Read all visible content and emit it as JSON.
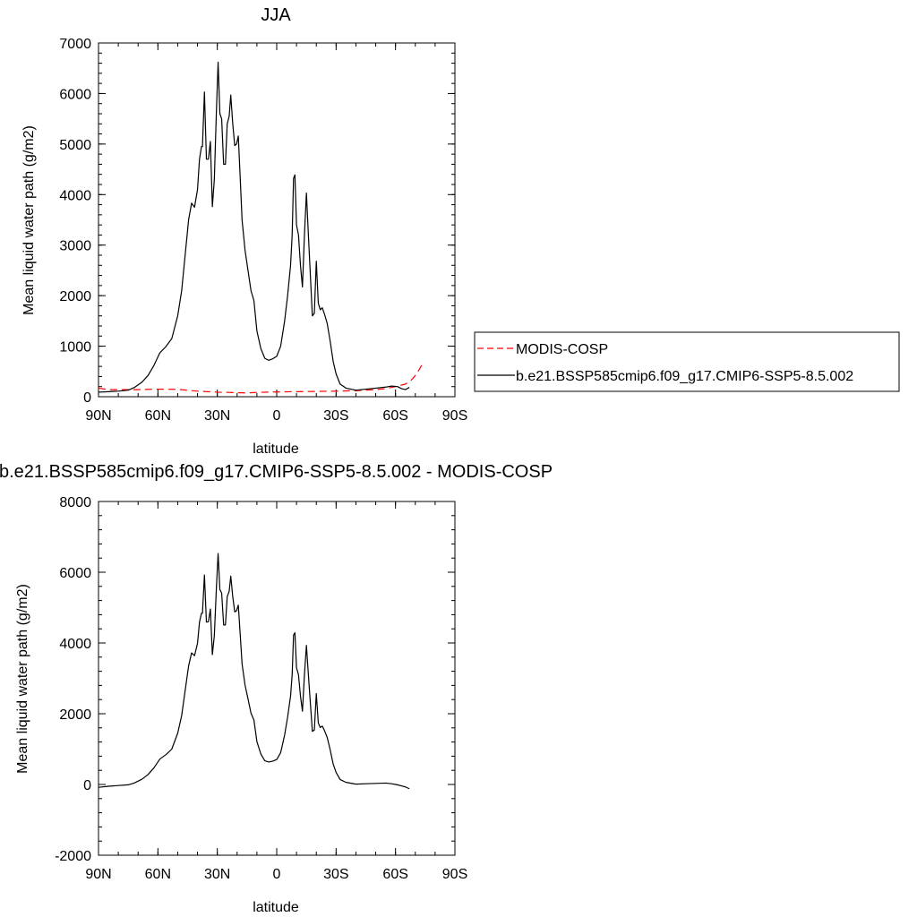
{
  "chart_data": [
    {
      "type": "line",
      "title": "JJA",
      "xlabel": "latitude",
      "ylabel": "Mean liquid water path (g/m2)",
      "xlim": [
        90,
        -90
      ],
      "ylim": [
        0,
        7000
      ],
      "x_ticks": [
        90,
        60,
        30,
        0,
        -30,
        -60,
        -90
      ],
      "x_tick_labels": [
        "90N",
        "60N",
        "30N",
        "0",
        "30S",
        "60S",
        "90S"
      ],
      "y_ticks": [
        0,
        1000,
        2000,
        3000,
        4000,
        5000,
        6000,
        7000
      ],
      "y_tick_labels": [
        "0",
        "1000",
        "2000",
        "3000",
        "4000",
        "5000",
        "6000",
        "7000"
      ],
      "grid": false,
      "legend_position": "right",
      "series": [
        {
          "name": "MODIS-COSP",
          "color": "#ff0000",
          "dash": "dashed",
          "points": [
            [
              90,
              170
            ],
            [
              85,
              140
            ],
            [
              80,
              140
            ],
            [
              70,
              140
            ],
            [
              60,
              150
            ],
            [
              50,
              145
            ],
            [
              40,
              110
            ],
            [
              30,
              90
            ],
            [
              20,
              80
            ],
            [
              15,
              75
            ],
            [
              10,
              85
            ],
            [
              0,
              95
            ],
            [
              -10,
              100
            ],
            [
              -20,
              105
            ],
            [
              -30,
              110
            ],
            [
              -40,
              120
            ],
            [
              -50,
              140
            ],
            [
              -55,
              160
            ],
            [
              -60,
              200
            ],
            [
              -65,
              250
            ],
            [
              -68,
              330
            ],
            [
              -70,
              420
            ],
            [
              -72,
              540
            ],
            [
              -74,
              680
            ]
          ]
        },
        {
          "name": "b.e21.BSSP585cmip6.f09_g17.CMIP6-SSP5-8.5.002",
          "color": "#000000",
          "dash": "solid",
          "points": [
            [
              90,
              90
            ],
            [
              85,
              100
            ],
            [
              80,
              110
            ],
            [
              75,
              130
            ],
            [
              72,
              180
            ],
            [
              68,
              290
            ],
            [
              65,
              420
            ],
            [
              62,
              620
            ],
            [
              59,
              870
            ],
            [
              56,
              990
            ],
            [
              53,
              1150
            ],
            [
              50,
              1600
            ],
            [
              48,
              2100
            ],
            [
              46,
              2900
            ],
            [
              44.5,
              3500
            ],
            [
              43,
              3830
            ],
            [
              41.5,
              3750
            ],
            [
              40,
              4100
            ],
            [
              39,
              4700
            ],
            [
              38,
              4950
            ],
            [
              37.5,
              4950
            ],
            [
              36.5,
              6030
            ],
            [
              35.5,
              4700
            ],
            [
              34.5,
              4700
            ],
            [
              33.5,
              5050
            ],
            [
              32.5,
              3760
            ],
            [
              31.5,
              4300
            ],
            [
              30.5,
              5600
            ],
            [
              29.6,
              6620
            ],
            [
              28.7,
              5600
            ],
            [
              27.8,
              5500
            ],
            [
              26.8,
              4600
            ],
            [
              25.9,
              4600
            ],
            [
              25,
              5400
            ],
            [
              24,
              5550
            ],
            [
              23.2,
              5970
            ],
            [
              22.2,
              5400
            ],
            [
              21.2,
              4970
            ],
            [
              20.3,
              5000
            ],
            [
              19.4,
              5160
            ],
            [
              18.4,
              4300
            ],
            [
              17.5,
              3500
            ],
            [
              16,
              2900
            ],
            [
              14.5,
              2500
            ],
            [
              13,
              2100
            ],
            [
              11.5,
              1900
            ],
            [
              10,
              1300
            ],
            [
              8,
              950
            ],
            [
              6,
              760
            ],
            [
              4,
              720
            ],
            [
              2,
              750
            ],
            [
              0,
              800
            ],
            [
              -2,
              1000
            ],
            [
              -4,
              1500
            ],
            [
              -5.5,
              2000
            ],
            [
              -7,
              2600
            ],
            [
              -7.8,
              3200
            ],
            [
              -8.5,
              4320
            ],
            [
              -9.2,
              4390
            ],
            [
              -10,
              3400
            ],
            [
              -11,
              3200
            ],
            [
              -12,
              2600
            ],
            [
              -13,
              2170
            ],
            [
              -14,
              3200
            ],
            [
              -15,
              4030
            ],
            [
              -16,
              3200
            ],
            [
              -17,
              2400
            ],
            [
              -18,
              1600
            ],
            [
              -19,
              1650
            ],
            [
              -20,
              2680
            ],
            [
              -21,
              1850
            ],
            [
              -22,
              1720
            ],
            [
              -23,
              1760
            ],
            [
              -24,
              1650
            ],
            [
              -25.5,
              1450
            ],
            [
              -27,
              1100
            ],
            [
              -28.5,
              700
            ],
            [
              -30,
              450
            ],
            [
              -32,
              250
            ],
            [
              -35,
              170
            ],
            [
              -40,
              130
            ],
            [
              -45,
              150
            ],
            [
              -50,
              170
            ],
            [
              -55,
              190
            ],
            [
              -58,
              210
            ],
            [
              -61,
              200
            ],
            [
              -63,
              160
            ],
            [
              -65,
              140
            ],
            [
              -67,
              185
            ]
          ]
        }
      ]
    },
    {
      "type": "line",
      "title": "b.e21.BSSP585cmip6.f09_g17.CMIP6-SSP5-8.5.002 - MODIS-COSP",
      "xlabel": "latitude",
      "ylabel": "Mean liquid water path (g/m2)",
      "xlim": [
        90,
        -90
      ],
      "ylim": [
        -2000,
        8000
      ],
      "x_ticks": [
        90,
        60,
        30,
        0,
        -30,
        -60,
        -90
      ],
      "x_tick_labels": [
        "90N",
        "60N",
        "30N",
        "0",
        "30S",
        "60S",
        "90S"
      ],
      "y_ticks": [
        -2000,
        0,
        2000,
        4000,
        6000,
        8000
      ],
      "y_tick_labels": [
        "-2000",
        "0",
        "2000",
        "4000",
        "6000",
        "8000"
      ],
      "grid": false,
      "series": [
        {
          "color": "#000000",
          "dash": "solid",
          "points": [
            [
              90,
              -80
            ],
            [
              85,
              -50
            ],
            [
              80,
              -30
            ],
            [
              75,
              -10
            ],
            [
              72,
              40
            ],
            [
              68,
              150
            ],
            [
              65,
              280
            ],
            [
              62,
              470
            ],
            [
              59,
              720
            ],
            [
              56,
              840
            ],
            [
              53,
              1000
            ],
            [
              50,
              1450
            ],
            [
              48,
              1950
            ],
            [
              46,
              2750
            ],
            [
              44.5,
              3350
            ],
            [
              43,
              3720
            ],
            [
              41.5,
              3640
            ],
            [
              40,
              3990
            ],
            [
              39,
              4590
            ],
            [
              38,
              4840
            ],
            [
              37.5,
              4840
            ],
            [
              36.5,
              5920
            ],
            [
              35.5,
              4590
            ],
            [
              34.5,
              4600
            ],
            [
              33.5,
              4960
            ],
            [
              32.5,
              3670
            ],
            [
              31.5,
              4210
            ],
            [
              30.5,
              5510
            ],
            [
              29.6,
              6530
            ],
            [
              28.7,
              5510
            ],
            [
              27.8,
              5410
            ],
            [
              26.8,
              4510
            ],
            [
              25.9,
              4510
            ],
            [
              25,
              5310
            ],
            [
              24,
              5460
            ],
            [
              23.2,
              5890
            ],
            [
              22.2,
              5310
            ],
            [
              21.2,
              4880
            ],
            [
              20.3,
              4910
            ],
            [
              19.4,
              5070
            ],
            [
              18.4,
              4210
            ],
            [
              17.5,
              3410
            ],
            [
              16,
              2810
            ],
            [
              14.5,
              2420
            ],
            [
              13,
              2020
            ],
            [
              11.5,
              1820
            ],
            [
              10,
              1210
            ],
            [
              8,
              860
            ],
            [
              6,
              670
            ],
            [
              4,
              635
            ],
            [
              2,
              660
            ],
            [
              0,
              705
            ],
            [
              -2,
              900
            ],
            [
              -4,
              1400
            ],
            [
              -5.5,
              1900
            ],
            [
              -7,
              2500
            ],
            [
              -7.8,
              3100
            ],
            [
              -8.5,
              4220
            ],
            [
              -9.2,
              4290
            ],
            [
              -10,
              3300
            ],
            [
              -11,
              3100
            ],
            [
              -12,
              2500
            ],
            [
              -13,
              2070
            ],
            [
              -14,
              3100
            ],
            [
              -15,
              3930
            ],
            [
              -16,
              3100
            ],
            [
              -17,
              2300
            ],
            [
              -18,
              1500
            ],
            [
              -19,
              1540
            ],
            [
              -20,
              2570
            ],
            [
              -21,
              1740
            ],
            [
              -22,
              1610
            ],
            [
              -23,
              1650
            ],
            [
              -24,
              1540
            ],
            [
              -25.5,
              1330
            ],
            [
              -27,
              980
            ],
            [
              -28.5,
              580
            ],
            [
              -30,
              340
            ],
            [
              -32,
              140
            ],
            [
              -35,
              60
            ],
            [
              -40,
              10
            ],
            [
              -45,
              20
            ],
            [
              -50,
              30
            ],
            [
              -55,
              40
            ],
            [
              -58,
              20
            ],
            [
              -61,
              -10
            ],
            [
              -63,
              -40
            ],
            [
              -65,
              -70
            ],
            [
              -67,
              -120
            ]
          ]
        }
      ]
    }
  ]
}
